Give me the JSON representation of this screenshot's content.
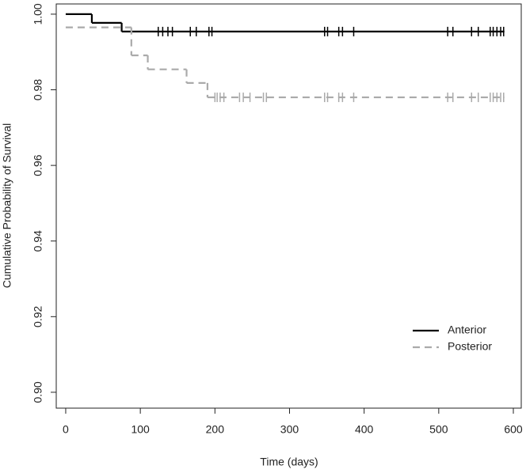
{
  "chart_data": {
    "type": "survival",
    "xlabel": "Time (days)",
    "ylabel": "Cumulative Probability of Survival",
    "xlim": [
      -12.7,
      610.6
    ],
    "xticks": [
      0,
      100,
      200,
      300,
      400,
      500,
      600
    ],
    "ylim": [
      0.8958,
      1.0027
    ],
    "yticks": [
      {
        "value": 0.9,
        "label": "0.90"
      },
      0.92,
      0.94,
      0.96,
      0.98,
      {
        "value": 1,
        "label": "1.00"
      }
    ],
    "legend": "bottom-right",
    "series": [
      {
        "name": "Anterior",
        "color": "#000000",
        "dash": false,
        "x": [
          0,
          35,
          75,
          588
        ],
        "values": [
          1.0,
          0.9977,
          0.9954,
          0.9954
        ],
        "censored_x": [
          124,
          130,
          137,
          143,
          167,
          175,
          192,
          196,
          347,
          351,
          366,
          371,
          386,
          512,
          519,
          544,
          553,
          569,
          573,
          578,
          583,
          587
        ],
        "censored_values": [
          0.9954,
          0.9954,
          0.9954,
          0.9954,
          0.9954,
          0.9954,
          0.9954,
          0.9954,
          0.9954,
          0.9954,
          0.9954,
          0.9954,
          0.9954,
          0.9954,
          0.9954,
          0.9954,
          0.9954,
          0.9954,
          0.9954,
          0.9954,
          0.9954,
          0.9954
        ]
      },
      {
        "name": "Posterior",
        "color": "#aaaaaa",
        "dash": true,
        "x": [
          0,
          88,
          110,
          162,
          190,
          588
        ],
        "values": [
          0.9965,
          0.9891,
          0.9854,
          0.9818,
          0.978,
          0.978
        ],
        "censored_x": [
          200,
          203,
          207,
          212,
          233,
          238,
          247,
          265,
          269,
          347,
          351,
          366,
          371,
          386,
          512,
          519,
          544,
          553,
          569,
          573,
          578,
          583,
          587
        ],
        "censored_values": [
          0.978,
          0.978,
          0.978,
          0.978,
          0.978,
          0.978,
          0.978,
          0.978,
          0.978,
          0.978,
          0.978,
          0.978,
          0.978,
          0.978,
          0.978,
          0.978,
          0.978,
          0.978,
          0.978,
          0.978,
          0.978,
          0.978,
          0.978
        ]
      }
    ]
  }
}
